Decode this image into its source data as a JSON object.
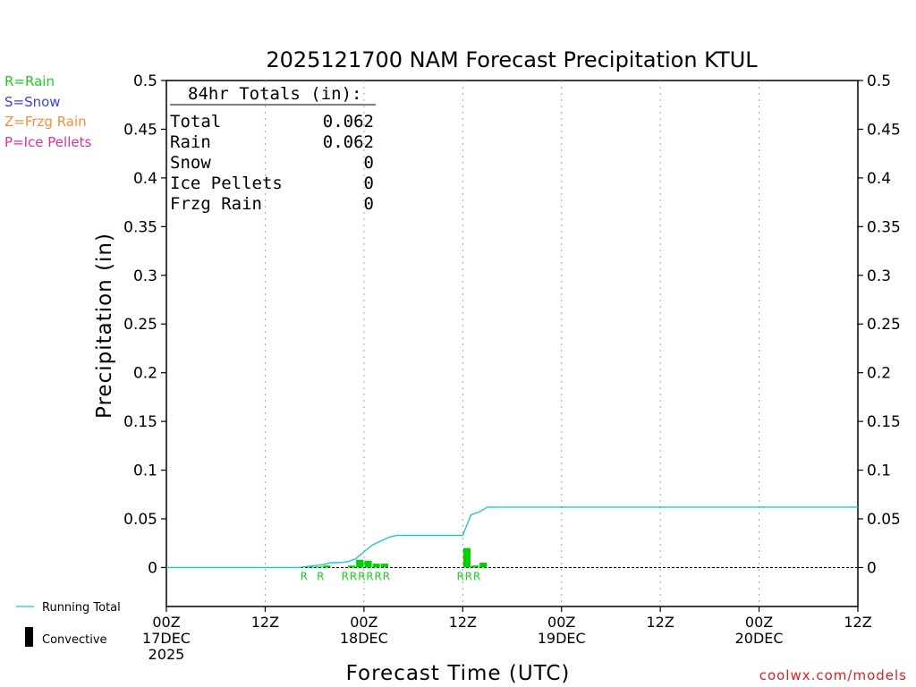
{
  "chart_data": {
    "type": "bar",
    "title": "2025121700 NAM Forecast Precipitation KTUL",
    "xlabel": "Forecast Time (UTC)",
    "ylabel": "Precipitation (in)",
    "ylim": [
      -0.04,
      0.5
    ],
    "xlim": [
      0,
      84
    ],
    "y_ticks": [
      {
        "value": 0.5,
        "label": "0.5"
      },
      {
        "value": 0.45,
        "label": "0.45"
      },
      {
        "value": 0.4,
        "label": "0.4"
      },
      {
        "value": 0.35,
        "label": "0.35"
      },
      {
        "value": 0.3,
        "label": "0.3"
      },
      {
        "value": 0.25,
        "label": "0.25"
      },
      {
        "value": 0.2,
        "label": "0.2"
      },
      {
        "value": 0.15,
        "label": "0.15"
      },
      {
        "value": 0.1,
        "label": "0.1"
      },
      {
        "value": 0.05,
        "label": "0.05"
      },
      {
        "value": 0,
        "label": "0"
      }
    ],
    "x_ticks": [
      {
        "hour": 0,
        "lines": [
          "00Z",
          "17DEC",
          "2025"
        ]
      },
      {
        "hour": 12,
        "lines": [
          "12Z"
        ]
      },
      {
        "hour": 24,
        "lines": [
          "00Z",
          "18DEC"
        ]
      },
      {
        "hour": 36,
        "lines": [
          "12Z"
        ]
      },
      {
        "hour": 48,
        "lines": [
          "00Z",
          "19DEC"
        ]
      },
      {
        "hour": 60,
        "lines": [
          "12Z"
        ]
      },
      {
        "hour": 72,
        "lines": [
          "00Z",
          "20DEC"
        ]
      },
      {
        "hour": 84,
        "lines": [
          "12Z"
        ]
      }
    ],
    "grid": "vertical dotted at 12Z / 00Z",
    "precip_bars": [
      {
        "hour": 18,
        "value": 0.001
      },
      {
        "hour": 19,
        "value": 0.001
      },
      {
        "hour": 20,
        "value": 0.002
      },
      {
        "hour": 23,
        "value": 0.002
      },
      {
        "hour": 24,
        "value": 0.008
      },
      {
        "hour": 25,
        "value": 0.007
      },
      {
        "hour": 26,
        "value": 0.004
      },
      {
        "hour": 27,
        "value": 0.004
      },
      {
        "hour": 37,
        "value": 0.02
      },
      {
        "hour": 38,
        "value": 0.002
      },
      {
        "hour": 39,
        "value": 0.005
      }
    ],
    "ptype_markers": [
      {
        "hour": 17.5,
        "label": "R"
      },
      {
        "hour": 19.5,
        "label": "R"
      },
      {
        "hour": 22.5,
        "label": "R"
      },
      {
        "hour": 23.5,
        "label": "R"
      },
      {
        "hour": 24.5,
        "label": "R"
      },
      {
        "hour": 25.5,
        "label": "R"
      },
      {
        "hour": 26.5,
        "label": "R"
      },
      {
        "hour": 27.5,
        "label": "R"
      },
      {
        "hour": 36.5,
        "label": "R"
      },
      {
        "hour": 37.5,
        "label": "R"
      },
      {
        "hour": 38.5,
        "label": "R"
      }
    ],
    "running_total": [
      {
        "hour": 0,
        "value": 0
      },
      {
        "hour": 16,
        "value": 0
      },
      {
        "hour": 17,
        "value": 0.001
      },
      {
        "hour": 18,
        "value": 0.002
      },
      {
        "hour": 19,
        "value": 0.003
      },
      {
        "hour": 20,
        "value": 0.005
      },
      {
        "hour": 21,
        "value": 0.005
      },
      {
        "hour": 22,
        "value": 0.006
      },
      {
        "hour": 23,
        "value": 0.009
      },
      {
        "hour": 24,
        "value": 0.016
      },
      {
        "hour": 25,
        "value": 0.023
      },
      {
        "hour": 26,
        "value": 0.027
      },
      {
        "hour": 27,
        "value": 0.031
      },
      {
        "hour": 28,
        "value": 0.033
      },
      {
        "hour": 36,
        "value": 0.033
      },
      {
        "hour": 37,
        "value": 0.054
      },
      {
        "hour": 38,
        "value": 0.057
      },
      {
        "hour": 39,
        "value": 0.062
      },
      {
        "hour": 84,
        "value": 0.062
      }
    ],
    "legend": {
      "ptype_lines": [
        {
          "text": "R=Rain",
          "color": "#1ccf1c"
        },
        {
          "text": "S=Snow",
          "color": "#3f3fdf"
        },
        {
          "text": "Z=Frzg Rain",
          "color": "#ef8f3f"
        },
        {
          "text": "P=Ice Pellets",
          "color": "#df2fa0"
        }
      ],
      "running_total_label": "Running Total",
      "convective_label": "Convective",
      "placement": "left margin"
    },
    "totals_box": {
      "header": "84hr Totals (in):",
      "rows": [
        {
          "label": "Total",
          "value": "0.062"
        },
        {
          "label": "Rain",
          "value": "0.062"
        },
        {
          "label": "Snow",
          "value": "0"
        },
        {
          "label": "Ice Pellets",
          "value": "0"
        },
        {
          "label": "Frzg Rain",
          "value": "0"
        }
      ]
    },
    "credit": "coolwx.com/models",
    "colors": {
      "bar": "#00d000",
      "running_total": "#20c8c8",
      "marker": "#1ccf1c",
      "credit": "#e02020",
      "axis": "#000000",
      "grid": "#a0a0a0"
    }
  }
}
